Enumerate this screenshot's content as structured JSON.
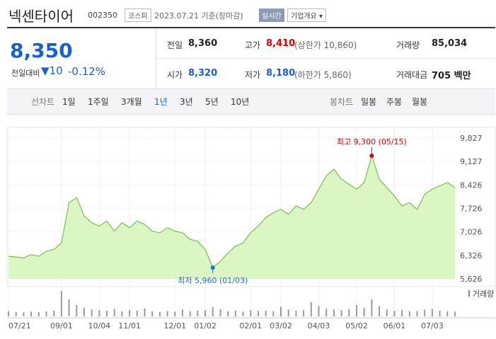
{
  "header": {
    "name": "넥센타이어",
    "code": "002350",
    "market": "코스피",
    "date": "2023.07.21 기준(장마감)",
    "realtime": "실시간",
    "overview": "기업개요"
  },
  "quote": {
    "price": "8,350",
    "change_label": "전일대비",
    "change": "10",
    "change_pct": "-0.12%"
  },
  "summary": [
    {
      "label": "전일",
      "value": "8,360"
    },
    {
      "label": "고가",
      "value": "8,410",
      "note": "(상한가 10,860)"
    },
    {
      "label": "거래량",
      "value": "85,034"
    },
    {
      "label": "시가",
      "value": "8,320"
    },
    {
      "label": "저가",
      "value": "8,180",
      "note": "(하한가 5,860)"
    },
    {
      "label": "거래대금",
      "value": "705 백만"
    }
  ],
  "tabs": {
    "line_label": "선차트",
    "line": [
      "1일",
      "1주일",
      "3개월",
      "1년",
      "3년",
      "5년",
      "10년"
    ],
    "active": "1년",
    "candle_label": "봉차트",
    "candle": [
      "일봉",
      "주봉",
      "월봉"
    ]
  },
  "chart_data": {
    "type": "line",
    "color": "#74c24a",
    "fill": "#d2f2b4",
    "categories": [
      "07/21",
      null,
      null,
      null,
      null,
      null,
      null,
      "09/01",
      null,
      null,
      null,
      null,
      "10/04",
      null,
      null,
      null,
      "11/01",
      null,
      null,
      null,
      null,
      null,
      "12/01",
      null,
      null,
      null,
      "01/02",
      null,
      null,
      null,
      null,
      null,
      "02/01",
      null,
      null,
      null,
      "03/02",
      null,
      null,
      null,
      null,
      "04/03",
      null,
      null,
      null,
      null,
      "05/02",
      null,
      null,
      null,
      null,
      "06/01",
      null,
      null,
      null,
      null,
      "07/03",
      null,
      null,
      null
    ],
    "values": [
      6300,
      6280,
      6250,
      6350,
      6300,
      6450,
      6500,
      6700,
      7900,
      8050,
      7500,
      7300,
      7200,
      7350,
      7050,
      7300,
      7150,
      7350,
      7250,
      7050,
      7000,
      7150,
      7050,
      7000,
      6800,
      6750,
      6500,
      5960,
      6150,
      6400,
      6600,
      6700,
      7000,
      7200,
      7450,
      7600,
      7700,
      7550,
      7800,
      7700,
      7900,
      8300,
      8700,
      8900,
      8600,
      8450,
      8300,
      8500,
      9300,
      8600,
      8350,
      8100,
      7800,
      7900,
      7700,
      8150,
      8300,
      8400,
      8500,
      8350
    ],
    "ylim": [
      5626,
      9827
    ],
    "yticks": [
      {
        "value": 5626,
        "label": "5,626"
      },
      {
        "value": 6326,
        "label": "6,326"
      },
      {
        "value": 7026,
        "label": "7,026"
      },
      {
        "value": 7726,
        "label": "7,726"
      },
      {
        "value": 8426,
        "label": "8,426"
      },
      {
        "value": 9127,
        "label": "9,127"
      },
      {
        "value": 9827,
        "label": "9,827"
      }
    ],
    "grid": true,
    "annotations": [
      {
        "text": "최고 9,300 (05/15)",
        "index": 48,
        "color": "#e00000"
      },
      {
        "text": "최저 5,960 (01/03)",
        "index": 27,
        "color": "#1a6fd1"
      }
    ],
    "volume": {
      "name": "거래량",
      "color": "#9a9a9a",
      "ylim": [
        0,
        500000
      ],
      "values": [
        90000,
        80000,
        70000,
        85000,
        75000,
        90000,
        100000,
        450000,
        300000,
        200000,
        150000,
        120000,
        110000,
        100000,
        130000,
        90000,
        110000,
        100000,
        140000,
        90000,
        80000,
        95000,
        85000,
        120000,
        90000,
        100000,
        110000,
        160000,
        130000,
        90000,
        100000,
        85000,
        110000,
        95000,
        100000,
        90000,
        170000,
        120000,
        100000,
        110000,
        250000,
        180000,
        140000,
        120000,
        110000,
        130000,
        200000,
        150000,
        300000,
        180000,
        120000,
        100000,
        110000,
        90000,
        95000,
        120000,
        130000,
        100000,
        90000,
        85000
      ]
    }
  }
}
